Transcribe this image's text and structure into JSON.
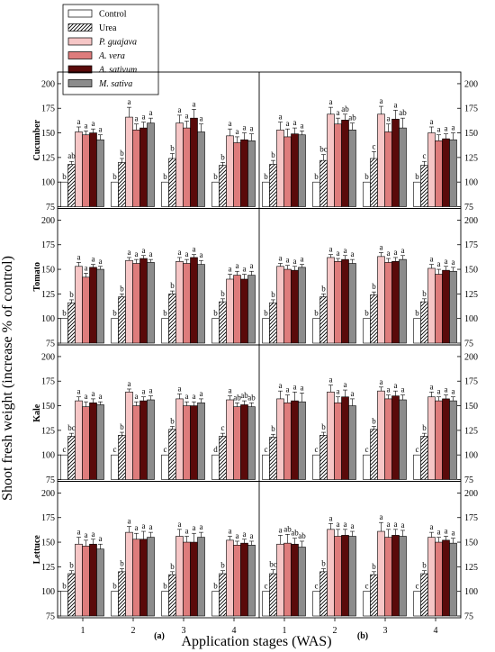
{
  "legend": {
    "entries": [
      {
        "name": "Control",
        "fill": "#ffffff",
        "pattern": false
      },
      {
        "name": "Urea",
        "fill": "#ffffff",
        "pattern": true
      },
      {
        "name": "P. guajava",
        "fill": "#f6c6c6",
        "pattern": false,
        "italic": true
      },
      {
        "name": "A. vera",
        "fill": "#de7c7c",
        "pattern": false,
        "italic": true
      },
      {
        "name": "A. sativum",
        "fill": "#5a0a0a",
        "pattern": false,
        "italic": true
      },
      {
        "name": "M. sativa",
        "fill": "#8c8c8c",
        "pattern": false,
        "italic": true
      }
    ]
  },
  "y_axis_label": "Shoot fresh weight (increase % of control)",
  "x_axis_label": "Application stages (WAS)",
  "panel_labels": [
    "(a)",
    "(b)"
  ],
  "chart_data": {
    "type": "bar",
    "categories": [
      "1",
      "2",
      "3",
      "4"
    ],
    "ylim": [
      75,
      210
    ],
    "yticks": [
      75,
      100,
      125,
      150,
      175,
      200
    ],
    "series_names": [
      "Control",
      "Urea",
      "P. guajava",
      "A. vera",
      "A. sativum",
      "M. sativa"
    ],
    "crops": [
      {
        "name": "Cucumber",
        "panels": [
          {
            "label": "(a)",
            "values": [
              [
                100,
                118,
                151,
                148,
                150,
                143
              ],
              [
                100,
                120,
                166,
                153,
                155,
                160
              ],
              [
                100,
                124,
                160,
                155,
                165,
                151
              ],
              [
                100,
                117,
                147,
                140,
                143,
                142
              ]
            ],
            "errors": [
              [
                0,
                3,
                5,
                4,
                4,
                5
              ],
              [
                0,
                4,
                10,
                6,
                6,
                5
              ],
              [
                0,
                5,
                8,
                7,
                9,
                8
              ],
              [
                0,
                3,
                7,
                6,
                7,
                7
              ]
            ],
            "letters": [
              [
                "b",
                "ab",
                "a",
                "a",
                "a",
                "a"
              ],
              [
                "b",
                "b",
                "a",
                "a",
                "a",
                "a"
              ],
              [
                "b",
                "b",
                "a",
                "a",
                "a",
                "a"
              ],
              [
                "b",
                "b",
                "a",
                "a",
                "a",
                "a"
              ]
            ]
          },
          {
            "label": "(b)",
            "values": [
              [
                100,
                118,
                153,
                146,
                149,
                148
              ],
              [
                100,
                122,
                169,
                159,
                163,
                153
              ],
              [
                100,
                124,
                169,
                151,
                164,
                155
              ],
              [
                100,
                117,
                150,
                142,
                144,
                143
              ]
            ],
            "errors": [
              [
                0,
                4,
                8,
                8,
                6,
                4
              ],
              [
                0,
                6,
                7,
                6,
                6,
                7
              ],
              [
                0,
                7,
                8,
                8,
                9,
                10
              ],
              [
                0,
                4,
                6,
                6,
                5,
                7
              ]
            ],
            "letters": [
              [
                "b",
                "b",
                "a",
                "a",
                "a",
                "a"
              ],
              [
                "b",
                "bc",
                "a",
                "a",
                "ab",
                "ab"
              ],
              [
                "b",
                "c",
                "a",
                "a",
                "a",
                "ab"
              ],
              [
                "b",
                "c",
                "a",
                "a",
                "a",
                "a"
              ]
            ]
          }
        ]
      },
      {
        "name": "Tomato",
        "panels": [
          {
            "label": "(a)",
            "values": [
              [
                100,
                116,
                153,
                142,
                152,
                150
              ],
              [
                100,
                122,
                159,
                156,
                161,
                157
              ],
              [
                100,
                125,
                158,
                156,
                162,
                155
              ],
              [
                100,
                117,
                140,
                144,
                140,
                144
              ]
            ],
            "errors": [
              [
                0,
                3,
                4,
                4,
                3,
                3
              ],
              [
                0,
                3,
                3,
                4,
                3,
                3
              ],
              [
                0,
                3,
                4,
                4,
                3,
                4
              ],
              [
                0,
                3,
                5,
                4,
                5,
                4
              ]
            ],
            "letters": [
              [
                "b",
                "b",
                "a",
                "a",
                "a",
                "a"
              ],
              [
                "b",
                "b",
                "a",
                "a",
                "a",
                "a"
              ],
              [
                "b",
                "b",
                "a",
                "a",
                "a",
                "a"
              ],
              [
                "b",
                "b",
                "a",
                "a",
                "a",
                "a"
              ]
            ]
          },
          {
            "label": "(b)",
            "values": [
              [
                100,
                116,
                153,
                150,
                149,
                152
              ],
              [
                100,
                122,
                162,
                158,
                160,
                156
              ],
              [
                100,
                124,
                163,
                157,
                158,
                160
              ],
              [
                100,
                117,
                151,
                145,
                149,
                148
              ]
            ],
            "errors": [
              [
                0,
                3,
                3,
                4,
                4,
                3
              ],
              [
                0,
                3,
                3,
                3,
                4,
                4
              ],
              [
                0,
                3,
                4,
                4,
                4,
                4
              ],
              [
                0,
                3,
                4,
                5,
                4,
                4
              ]
            ],
            "letters": [
              [
                "b",
                "b",
                "a",
                "a",
                "a",
                "a"
              ],
              [
                "b",
                "b",
                "a",
                "a",
                "a",
                "a"
              ],
              [
                "b",
                "b",
                "a",
                "a",
                "a",
                "a"
              ],
              [
                "b",
                "b",
                "a",
                "a",
                "a",
                "a"
              ]
            ]
          }
        ]
      },
      {
        "name": "Kale",
        "panels": [
          {
            "label": "(a)",
            "values": [
              [
                100,
                119,
                155,
                149,
                153,
                151
              ],
              [
                100,
                120,
                164,
                150,
                155,
                156
              ],
              [
                100,
                126,
                157,
                150,
                150,
                153
              ],
              [
                100,
                119,
                156,
                149,
                151,
                149
              ]
            ],
            "errors": [
              [
                0,
                3,
                4,
                5,
                4,
                3
              ],
              [
                0,
                3,
                3,
                4,
                4,
                4
              ],
              [
                0,
                3,
                5,
                4,
                4,
                4
              ],
              [
                0,
                3,
                4,
                4,
                4,
                4
              ]
            ],
            "letters": [
              [
                "c",
                "bc",
                "a",
                "a",
                "a",
                "a"
              ],
              [
                "c",
                "b",
                "a",
                "a",
                "a",
                "a"
              ],
              [
                "c",
                "b",
                "a",
                "a",
                "a",
                "a"
              ],
              [
                "d",
                "c",
                "a",
                "ab",
                "ab",
                "ab"
              ]
            ]
          },
          {
            "label": "(b)",
            "values": [
              [
                100,
                118,
                157,
                153,
                155,
                154
              ],
              [
                100,
                120,
                164,
                153,
                159,
                150
              ],
              [
                100,
                126,
                165,
                157,
                160,
                156
              ],
              [
                100,
                119,
                159,
                155,
                157,
                155
              ]
            ],
            "errors": [
              [
                0,
                3,
                8,
                8,
                9,
                9
              ],
              [
                0,
                3,
                7,
                6,
                7,
                7
              ],
              [
                0,
                3,
                4,
                4,
                5,
                5
              ],
              [
                0,
                3,
                5,
                4,
                4,
                4
              ]
            ],
            "letters": [
              [
                "c",
                "b",
                "a",
                "a",
                "a",
                "a"
              ],
              [
                "c",
                "b",
                "a",
                "a",
                "a",
                "a"
              ],
              [
                "c",
                "b",
                "a",
                "a",
                "a",
                "a"
              ],
              [
                "c",
                "b",
                "a",
                "a",
                "a",
                "a"
              ]
            ]
          }
        ]
      },
      {
        "name": "Lettuce",
        "panels": [
          {
            "label": "(a)",
            "values": [
              [
                100,
                118,
                148,
                146,
                148,
                143
              ],
              [
                100,
                120,
                160,
                153,
                153,
                155
              ],
              [
                100,
                117,
                156,
                150,
                150,
                155
              ],
              [
                100,
                118,
                152,
                147,
                149,
                147
              ]
            ],
            "errors": [
              [
                0,
                3,
                7,
                6,
                5,
                5
              ],
              [
                0,
                3,
                6,
                6,
                8,
                5
              ],
              [
                0,
                3,
                7,
                6,
                9,
                5
              ],
              [
                0,
                3,
                4,
                4,
                4,
                4
              ]
            ],
            "letters": [
              [
                "b",
                "b",
                "a",
                "a",
                "a",
                "a"
              ],
              [
                "b",
                "b",
                "a",
                "a",
                "a",
                "a"
              ],
              [
                "b",
                "b",
                "a",
                "a",
                "a",
                "a"
              ],
              [
                "b",
                "b",
                "a",
                "a",
                "a",
                "a"
              ]
            ]
          },
          {
            "label": "(b)",
            "values": [
              [
                100,
                118,
                148,
                149,
                148,
                145
              ],
              [
                100,
                120,
                163,
                156,
                157,
                156
              ],
              [
                100,
                117,
                161,
                155,
                157,
                156
              ],
              [
                100,
                118,
                155,
                150,
                152,
                149
              ]
            ],
            "errors": [
              [
                0,
                4,
                9,
                9,
                6,
                6
              ],
              [
                0,
                3,
                6,
                7,
                6,
                5
              ],
              [
                0,
                3,
                9,
                8,
                6,
                6
              ],
              [
                0,
                3,
                5,
                5,
                4,
                5
              ]
            ],
            "letters": [
              [
                "c",
                "bc",
                "a",
                "ab",
                "ab",
                "ab"
              ],
              [
                "c",
                "b",
                "a",
                "a",
                "a",
                "a"
              ],
              [
                "c",
                "b",
                "a",
                "a",
                "a",
                "a"
              ],
              [
                "c",
                "b",
                "a",
                "a",
                "a",
                "a"
              ]
            ]
          }
        ]
      }
    ]
  }
}
